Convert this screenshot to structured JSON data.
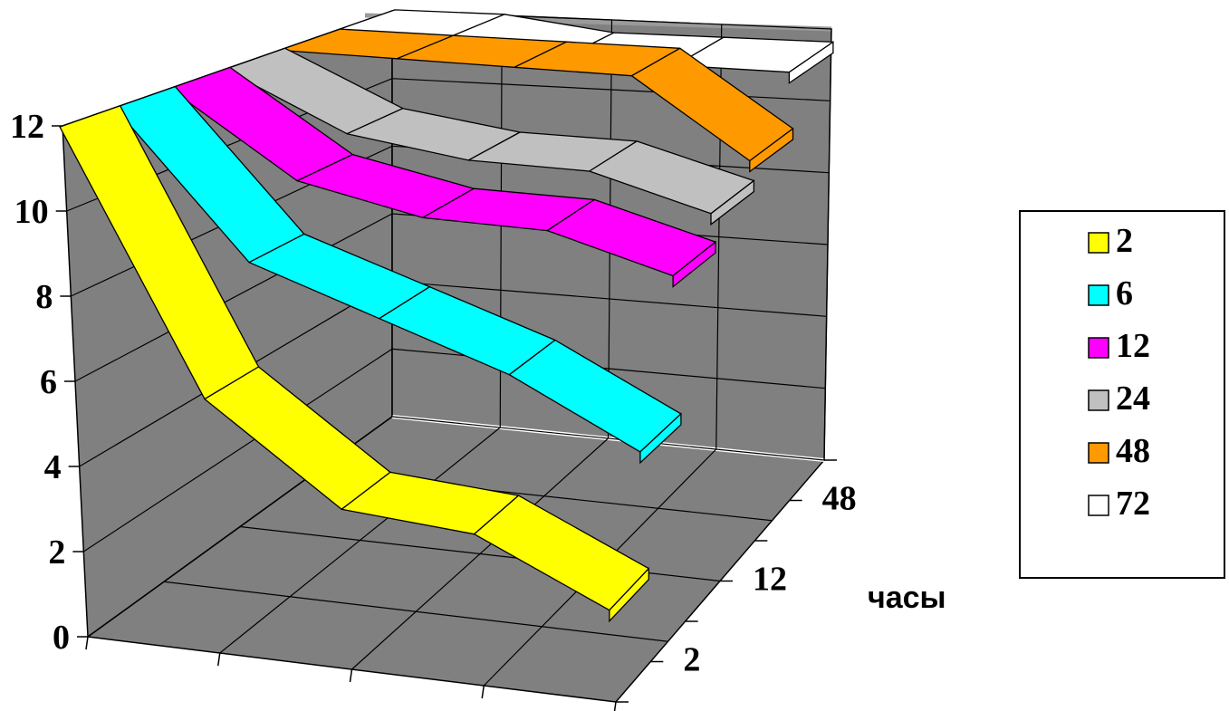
{
  "chart_data": {
    "type": "line",
    "subtype": "3d-ribbon",
    "title": "",
    "xlabel": "",
    "ylabel": "",
    "depth_label": "часы",
    "ylim": [
      0,
      12
    ],
    "y_ticks": [
      "0",
      "2",
      "4",
      "6",
      "8",
      "10",
      "12"
    ],
    "depth_tick_labels": [
      "2",
      "12",
      "48"
    ],
    "x": [
      1,
      2,
      3,
      4,
      5
    ],
    "series": [
      {
        "name": "2",
        "color": "#FFFF00",
        "values": [
          12.0,
          6.0,
          3.8,
          3.6,
          2.2
        ]
      },
      {
        "name": "6",
        "color": "#00FFFF",
        "values": [
          12.0,
          8.6,
          7.6,
          6.6,
          5.1
        ]
      },
      {
        "name": "12",
        "color": "#FF00FF",
        "values": [
          12.0,
          10.0,
          9.4,
          9.4,
          8.6
        ]
      },
      {
        "name": "24",
        "color": "#C0C0C0",
        "values": [
          12.0,
          10.6,
          10.2,
          10.2,
          9.4
        ]
      },
      {
        "name": "48",
        "color": "#FF9900",
        "values": [
          12.0,
          12.0,
          12.0,
          12.0,
          10.0
        ]
      },
      {
        "name": "72",
        "color": "#FFFFFF",
        "values": [
          12.0,
          12.0,
          11.6,
          11.6,
          11.6
        ]
      }
    ],
    "grid": true,
    "legend": "right"
  }
}
